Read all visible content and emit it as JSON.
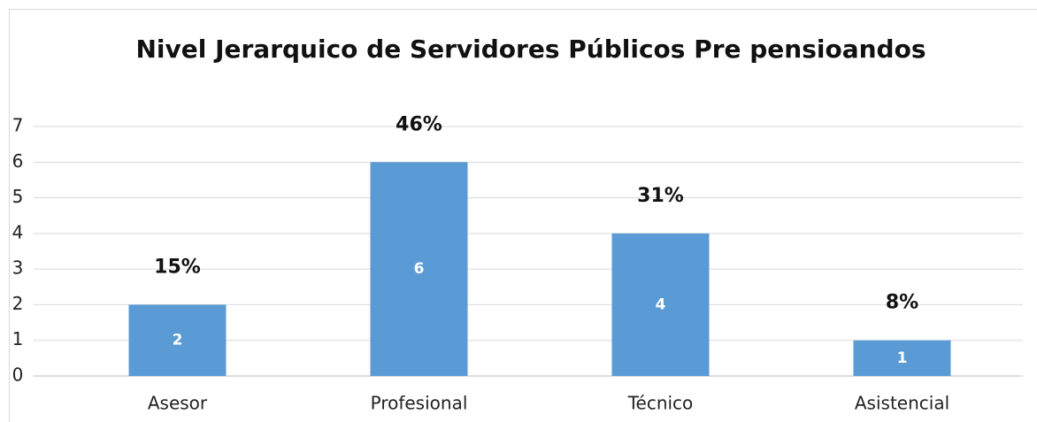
{
  "chart_data": {
    "type": "bar",
    "title": "Nivel Jerarquico de Servidores Públicos Pre pensioandos",
    "categories": [
      "Asesor",
      "Profesional",
      "Técnico",
      "Asistencial"
    ],
    "values": [
      2,
      6,
      4,
      1
    ],
    "percent_labels": [
      "15%",
      "46%",
      "31%",
      "8%"
    ],
    "color": "#5b9bd5",
    "ylim": [
      0,
      7
    ],
    "yticks": [
      0,
      1,
      2,
      3,
      4,
      5,
      6,
      7
    ],
    "grid": true
  }
}
